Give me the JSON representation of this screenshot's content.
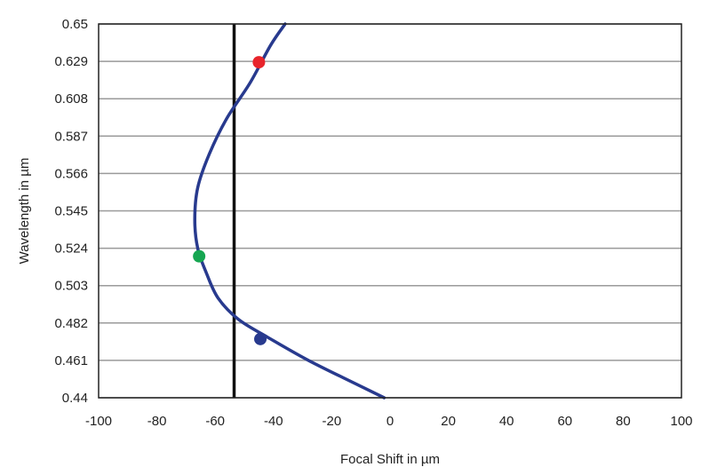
{
  "chart_data": {
    "type": "line",
    "title": "",
    "xlabel": "Focal Shift in µm",
    "ylabel": "Wavelength in µm",
    "xlim": [
      -100,
      100
    ],
    "ylim": [
      0.44,
      0.65
    ],
    "xticks": [
      "-100",
      "-80",
      "-60",
      "-40",
      "-20",
      "0",
      "20",
      "40",
      "60",
      "80",
      "100"
    ],
    "yticks": [
      "0.44",
      "0.461",
      "0.482",
      "0.503",
      "0.524",
      "0.545",
      "0.566",
      "0.587",
      "0.608",
      "0.629",
      "0.65"
    ],
    "grid": "horizontal",
    "reference_line_x": -53.5,
    "series": [
      {
        "color": "#283a8e",
        "x": [
          -2,
          -12,
          -28,
          -42,
          -52,
          -59,
          -63,
          -66,
          -67,
          -66,
          -62,
          -56,
          -48,
          -41,
          -36
        ],
        "y": [
          0.44,
          0.448,
          0.461,
          0.474,
          0.484,
          0.496,
          0.51,
          0.524,
          0.54,
          0.558,
          0.577,
          0.597,
          0.617,
          0.638,
          0.65
        ]
      }
    ],
    "markers": [
      {
        "x": -45,
        "y": 0.6285,
        "color": "#e8242b"
      },
      {
        "x": -65.5,
        "y": 0.5195,
        "color": "#16a651"
      },
      {
        "x": -44.5,
        "y": 0.473,
        "color": "#283a8e"
      }
    ]
  }
}
